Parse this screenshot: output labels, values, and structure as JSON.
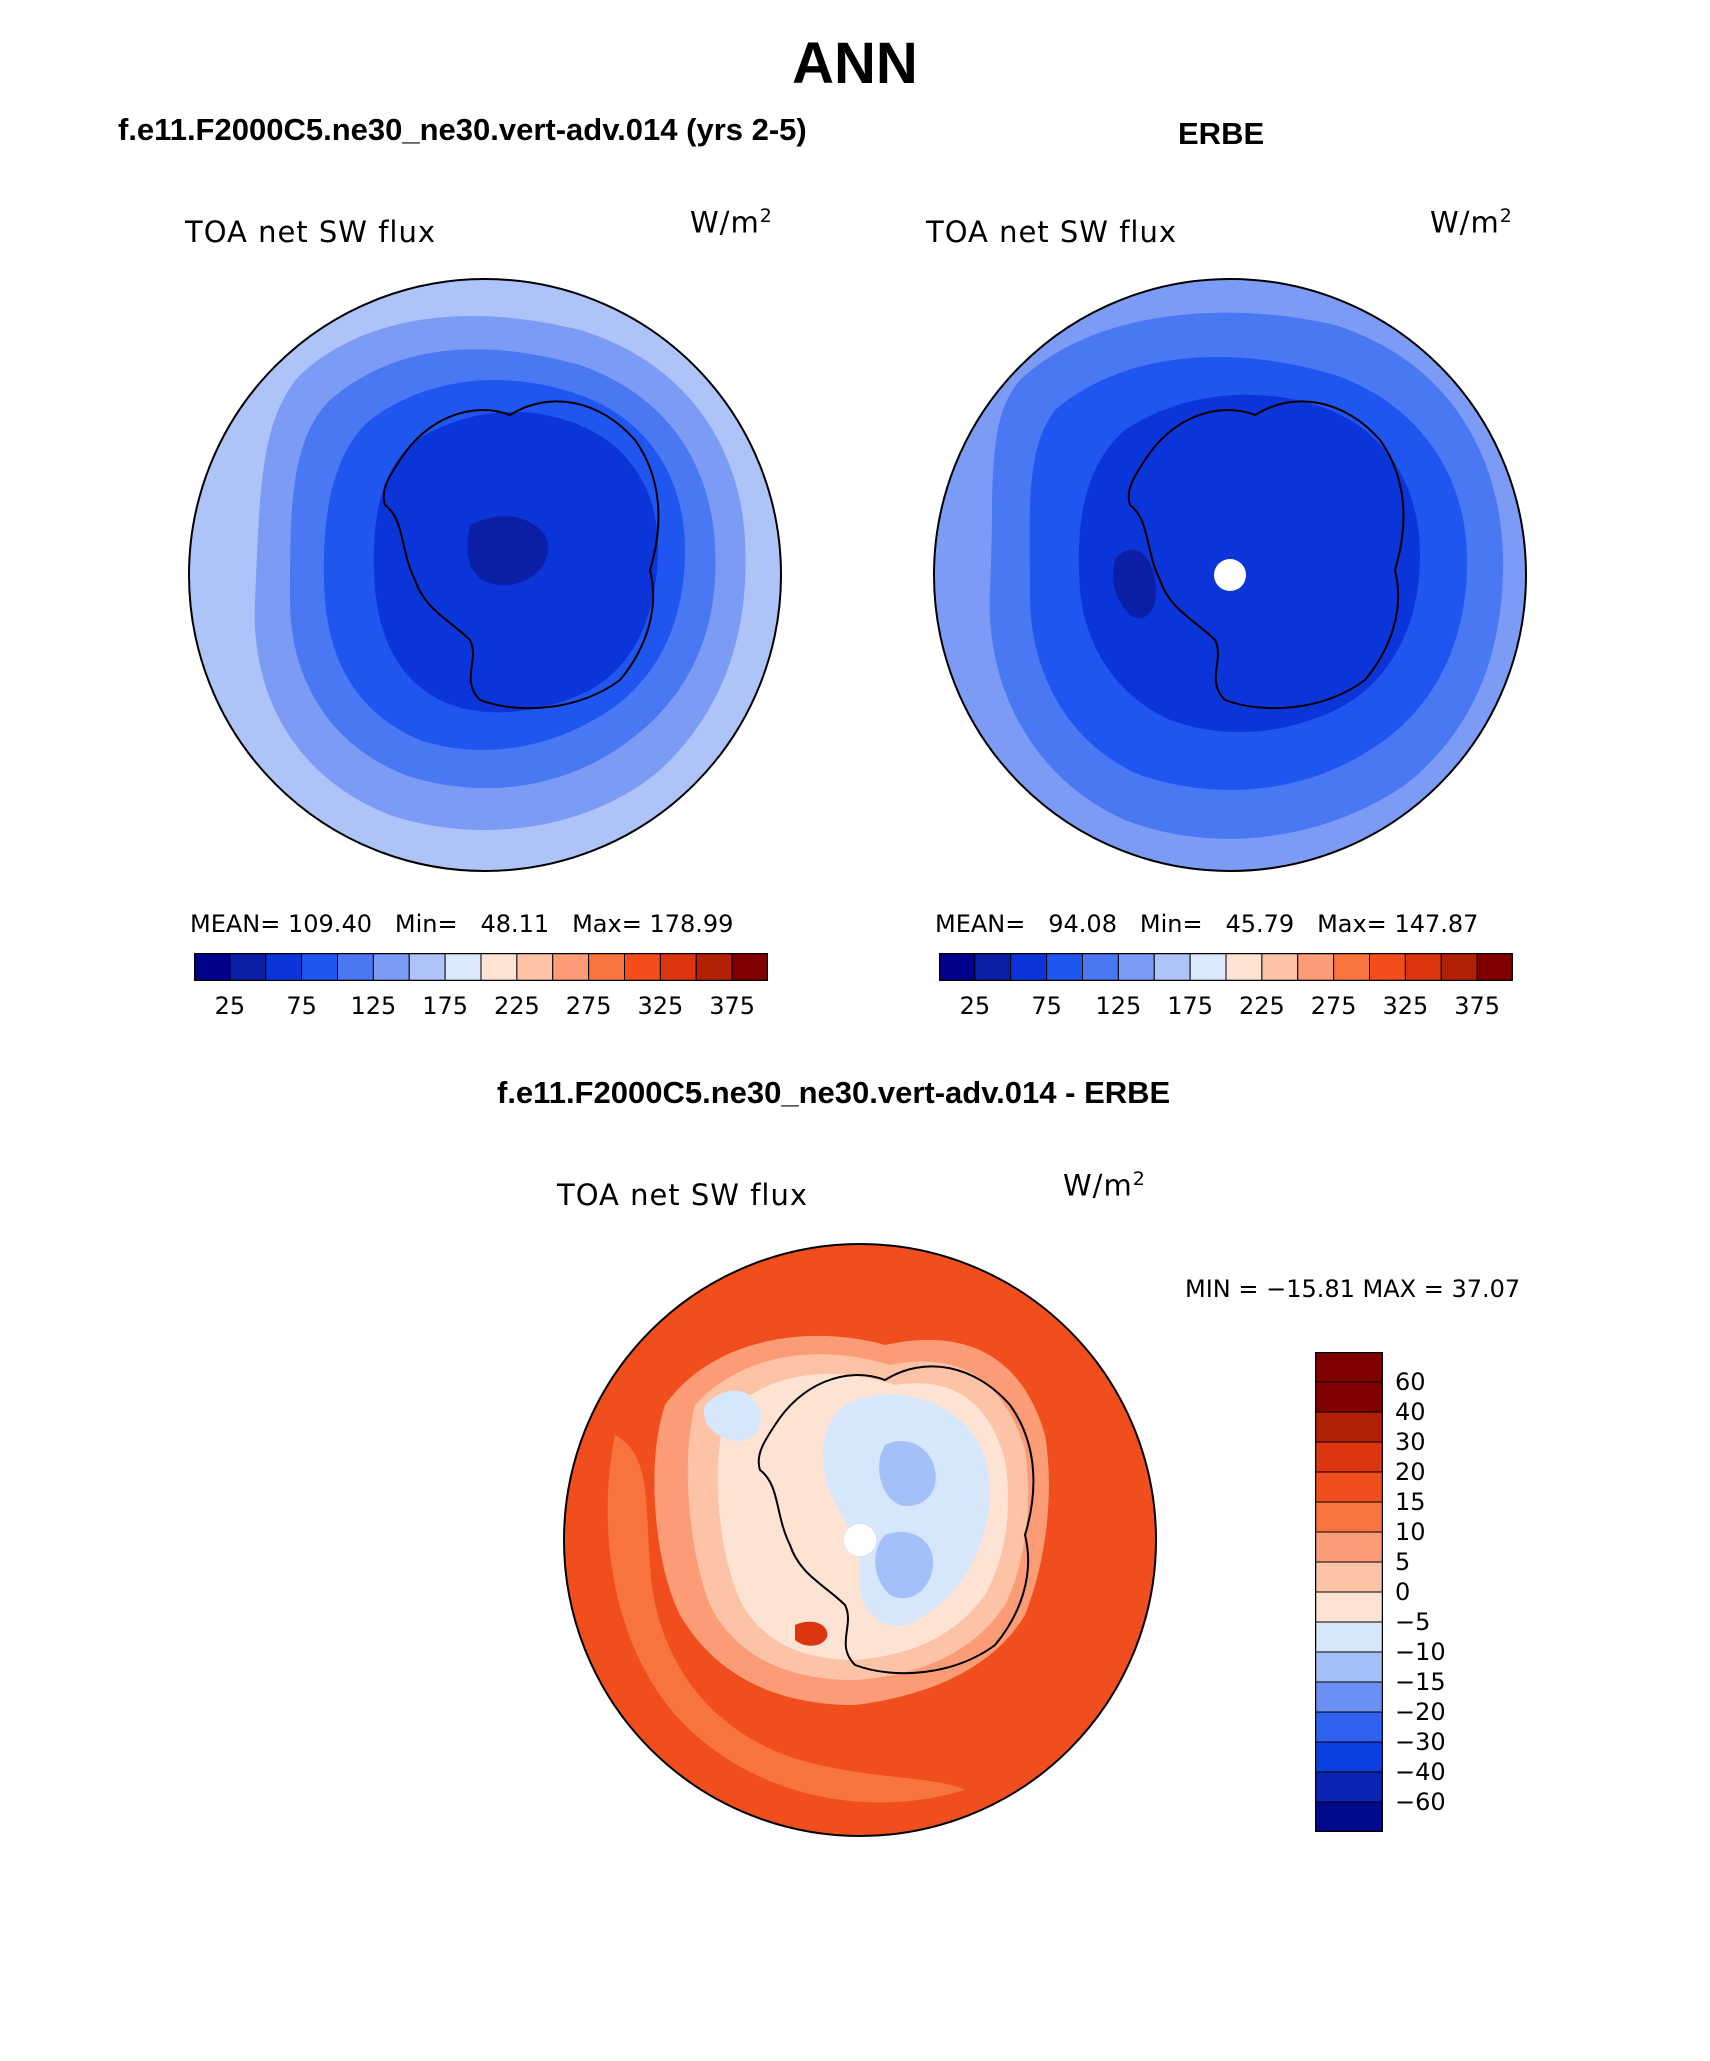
{
  "title": "ANN",
  "panels": [
    {
      "case_title": "f.e11.F2000C5.ne30_ne30.vert-adv.014 (yrs 2-5)",
      "variable": "TOA net SW flux",
      "units_base": "W/m",
      "units_exp": "2",
      "mean_label": "MEAN=",
      "mean": "109.40",
      "min_label": "Min=",
      "min": "48.11",
      "max_label": "Max=",
      "max": "178.99"
    },
    {
      "case_title": "ERBE",
      "variable": "TOA net SW flux",
      "units_base": "W/m",
      "units_exp": "2",
      "mean_label": "MEAN=",
      "mean": "94.08",
      "min_label": "Min=",
      "min": "45.79",
      "max_label": "Max=",
      "max": "147.87"
    }
  ],
  "diff": {
    "case_title": "f.e11.F2000C5.ne30_ne30.vert-adv.014 - ERBE",
    "variable": "TOA net SW flux",
    "units_base": "W/m",
    "units_exp": "2",
    "minmax_text": "MIN = −15.81 MAX =   37.07"
  },
  "colors": {
    "abs_scale": [
      "#00008b",
      "#0a1fa6",
      "#0b35d8",
      "#1f56f0",
      "#4a78f2",
      "#7c9bf4",
      "#aec3f8",
      "#dce8fb",
      "#fde3d4",
      "#fcc3a6",
      "#fb9c76",
      "#f8743f",
      "#f34d1c",
      "#dd3410",
      "#b22006",
      "#800000"
    ],
    "diff_scale": [
      "#000a8a",
      "#0a24b4",
      "#0b40e0",
      "#2f62f0",
      "#6a90f5",
      "#a4c0f8",
      "#d6e6fb",
      "#fde3d4",
      "#fcc3a6",
      "#fb9c76",
      "#f8743f",
      "#f04e1c",
      "#dc3510",
      "#b22006",
      "#800000"
    ],
    "coast": "#000000"
  },
  "chart_data": [
    {
      "type": "heatmap",
      "projection": "south-polar-stereographic",
      "title": "TOA net SW flux",
      "case": "f.e11.F2000C5.ne30_ne30.vert-adv.014 (yrs 2-5)",
      "units": "W/m2",
      "mean": 109.4,
      "min": 48.11,
      "max": 178.99,
      "colorbar_ticks": [
        "25",
        "75",
        "125",
        "175",
        "225",
        "275",
        "325",
        "375"
      ],
      "colorbar_orientation": "horizontal"
    },
    {
      "type": "heatmap",
      "projection": "south-polar-stereographic",
      "title": "TOA net SW flux",
      "case": "ERBE",
      "units": "W/m2",
      "mean": 94.08,
      "min": 45.79,
      "max": 147.87,
      "colorbar_ticks": [
        "25",
        "75",
        "125",
        "175",
        "225",
        "275",
        "325",
        "375"
      ],
      "colorbar_orientation": "horizontal"
    },
    {
      "type": "heatmap",
      "projection": "south-polar-stereographic",
      "title": "TOA net SW flux",
      "case": "f.e11.F2000C5.ne30_ne30.vert-adv.014 - ERBE",
      "units": "W/m2",
      "min": -15.81,
      "max": 37.07,
      "colorbar_ticks": [
        "60",
        "40",
        "30",
        "20",
        "15",
        "10",
        "5",
        "0",
        "−5",
        "−10",
        "−15",
        "−20",
        "−30",
        "−40",
        "−60"
      ],
      "colorbar_orientation": "vertical"
    }
  ]
}
